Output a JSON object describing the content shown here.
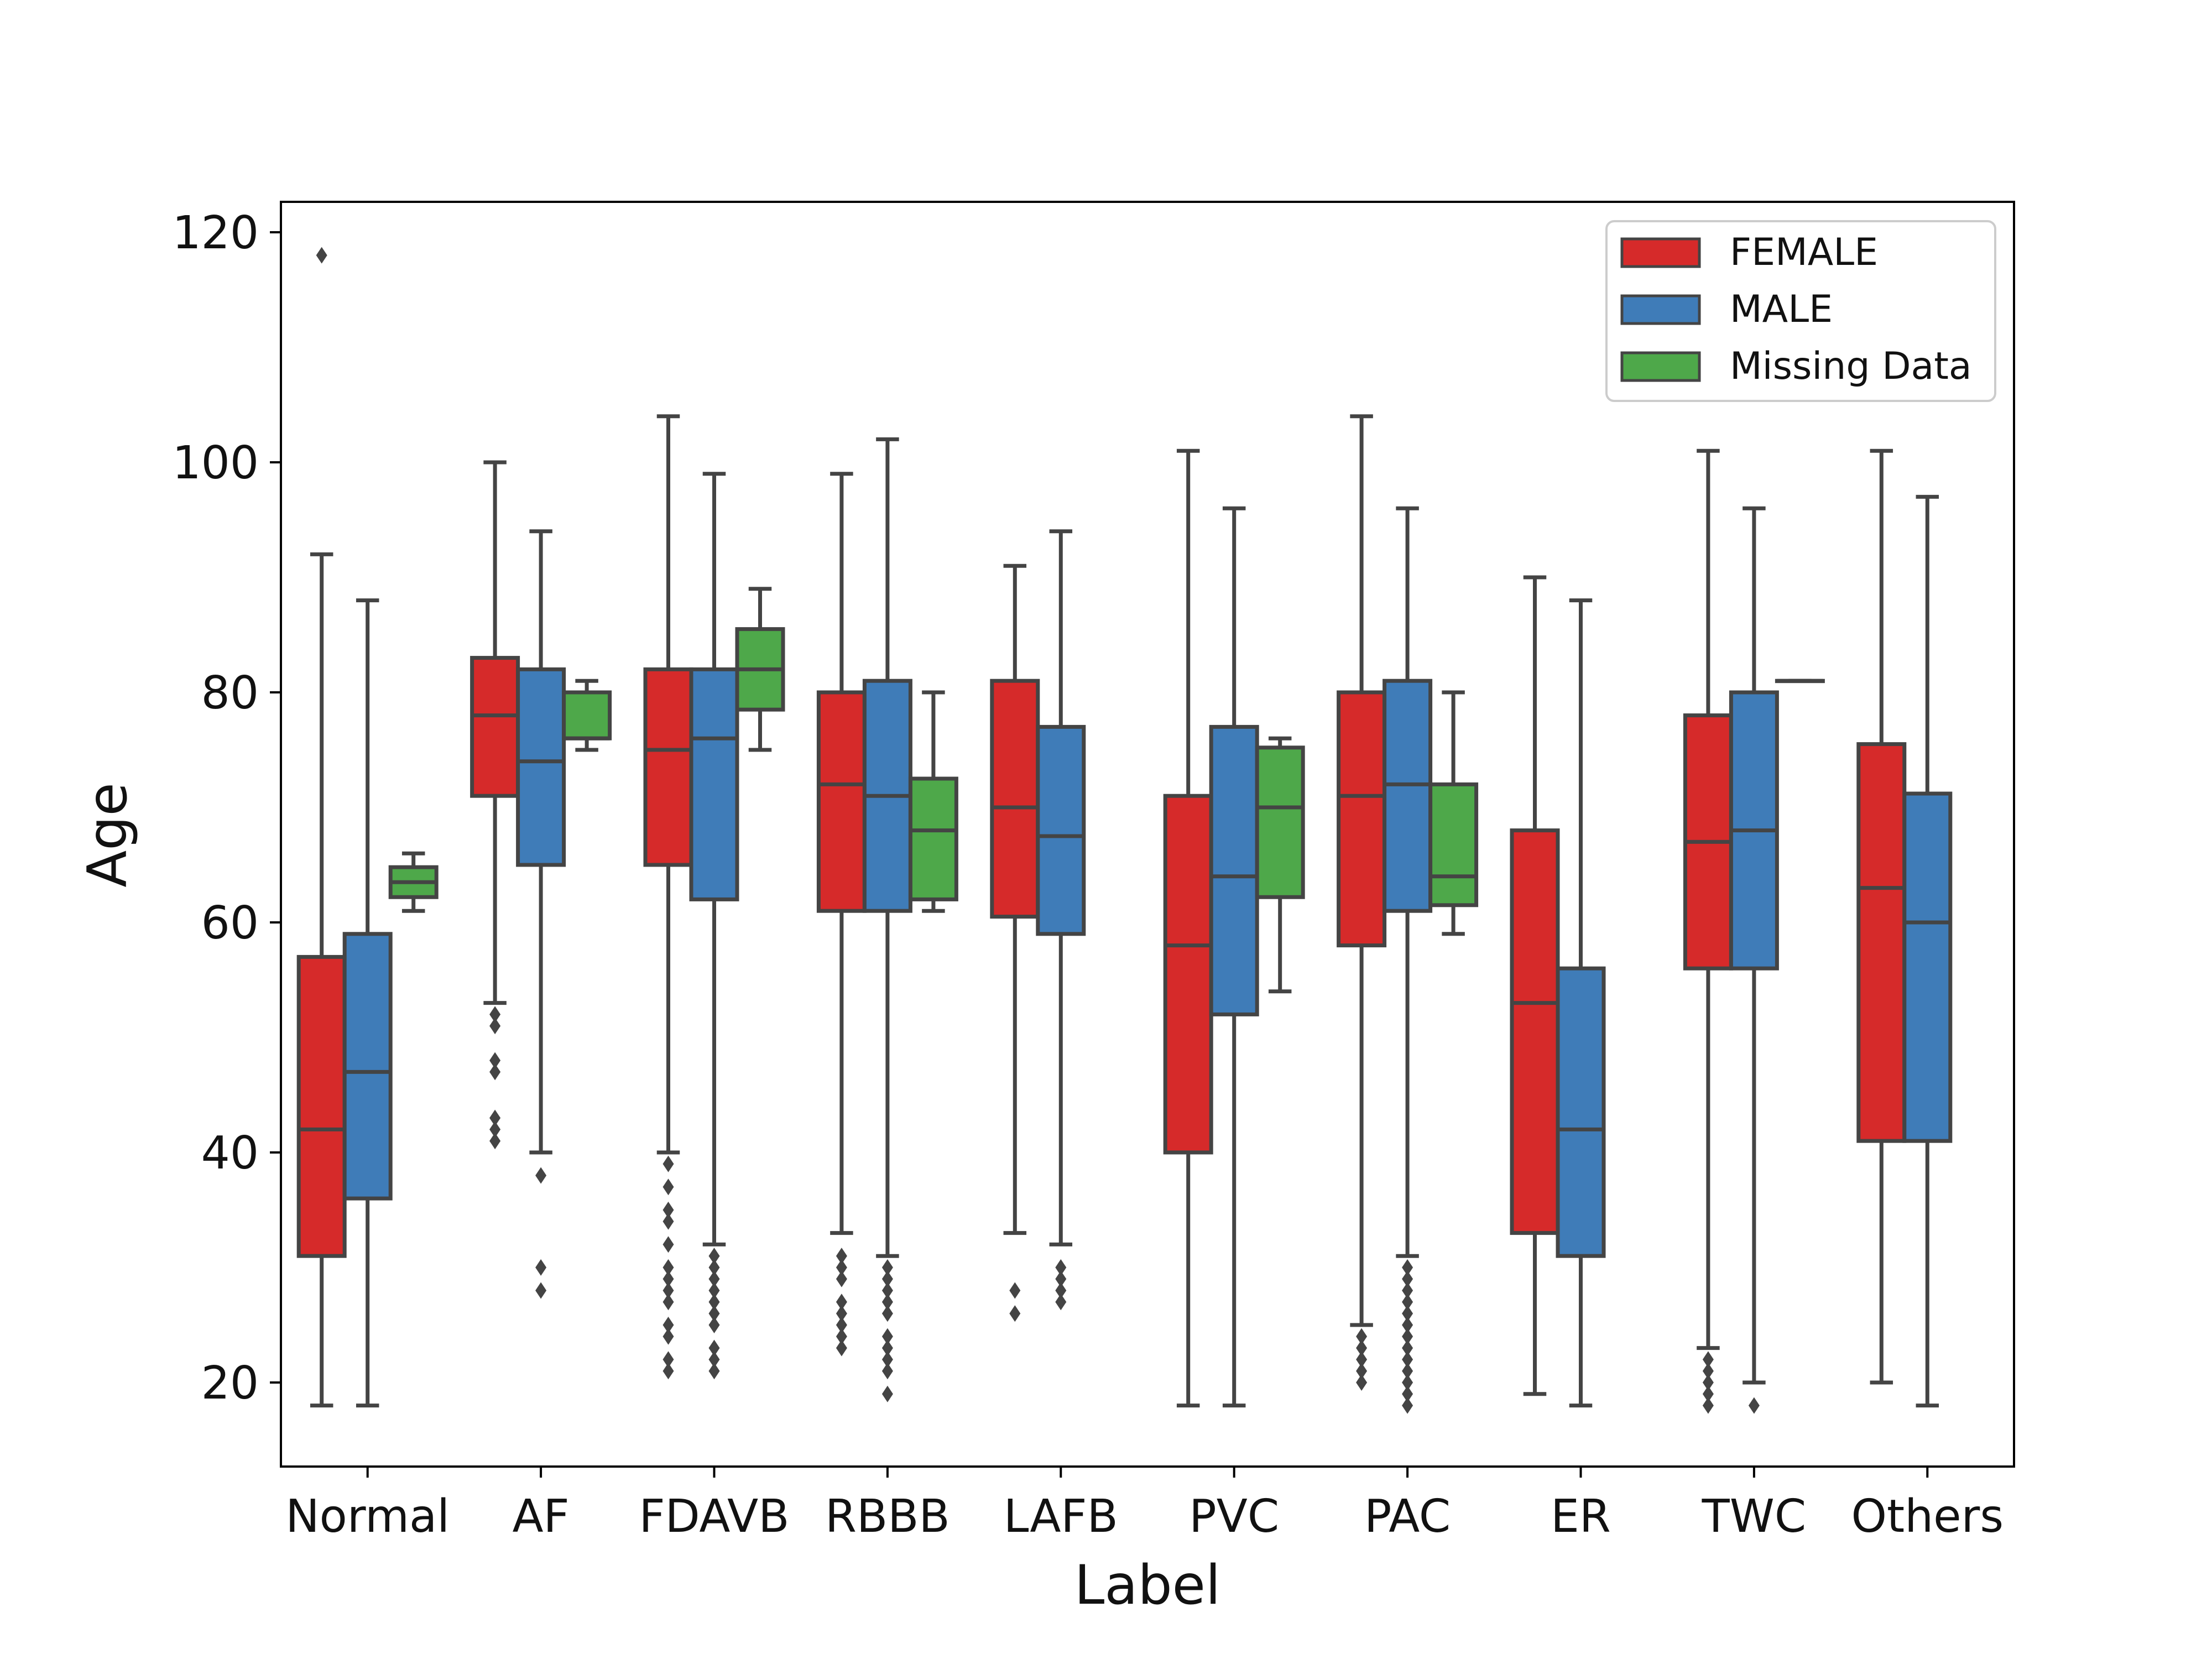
{
  "chart_data": {
    "type": "box",
    "xlabel": "Label",
    "ylabel": "Age",
    "ylim": [
      13,
      123
    ],
    "yticks": [
      20,
      40,
      60,
      80,
      100,
      120
    ],
    "categories": [
      "Normal",
      "AF",
      "FDAVB",
      "RBBB",
      "LAFB",
      "PVC",
      "PAC",
      "ER",
      "TWC",
      "Others"
    ],
    "legend": {
      "position": "top-right",
      "entries": [
        "FEMALE",
        "MALE",
        "Missing Data"
      ]
    },
    "series": [
      {
        "name": "FEMALE",
        "color": "#d62a2a",
        "boxes": [
          {
            "category": "Normal",
            "whisker_low": 18,
            "q1": 31,
            "median": 42,
            "q3": 57,
            "whisker_high": 92,
            "outliers": [
              118
            ]
          },
          {
            "category": "AF",
            "whisker_low": 53,
            "q1": 71,
            "median": 78,
            "q3": 83,
            "whisker_high": 100,
            "outliers": [
              52,
              51,
              48,
              47,
              43,
              42,
              41
            ]
          },
          {
            "category": "FDAVB",
            "whisker_low": 40,
            "q1": 65,
            "median": 75,
            "q3": 82,
            "whisker_high": 104,
            "outliers": [
              39,
              37,
              35,
              34,
              32,
              30,
              29,
              28,
              27,
              25,
              24,
              22,
              21
            ]
          },
          {
            "category": "RBBB",
            "whisker_low": 33,
            "q1": 61,
            "median": 72,
            "q3": 80,
            "whisker_high": 99,
            "outliers": [
              31,
              30,
              29,
              27,
              26,
              25,
              24,
              23
            ]
          },
          {
            "category": "LAFB",
            "whisker_low": 33,
            "q1": 60.5,
            "median": 70,
            "q3": 81,
            "whisker_high": 91,
            "outliers": [
              28,
              26
            ]
          },
          {
            "category": "PVC",
            "whisker_low": 18,
            "q1": 40,
            "median": 58,
            "q3": 71,
            "whisker_high": 101,
            "outliers": []
          },
          {
            "category": "PAC",
            "whisker_low": 25,
            "q1": 58,
            "median": 71,
            "q3": 80,
            "whisker_high": 104,
            "outliers": [
              24,
              23,
              22,
              21,
              20
            ]
          },
          {
            "category": "ER",
            "whisker_low": 19,
            "q1": 33,
            "median": 53,
            "q3": 68,
            "whisker_high": 90,
            "outliers": []
          },
          {
            "category": "TWC",
            "whisker_low": 23,
            "q1": 56,
            "median": 67,
            "q3": 78,
            "whisker_high": 101,
            "outliers": [
              22,
              21,
              20,
              19,
              18
            ]
          },
          {
            "category": "Others",
            "whisker_low": 20,
            "q1": 41,
            "median": 63,
            "q3": 75.5,
            "whisker_high": 101,
            "outliers": []
          }
        ]
      },
      {
        "name": "MALE",
        "color": "#3f7cb8",
        "boxes": [
          {
            "category": "Normal",
            "whisker_low": 18,
            "q1": 36,
            "median": 47,
            "q3": 59,
            "whisker_high": 88,
            "outliers": []
          },
          {
            "category": "AF",
            "whisker_low": 40,
            "q1": 65,
            "median": 74,
            "q3": 82,
            "whisker_high": 94,
            "outliers": [
              38,
              30,
              28
            ]
          },
          {
            "category": "FDAVB",
            "whisker_low": 32,
            "q1": 62,
            "median": 76,
            "q3": 82,
            "whisker_high": 99,
            "outliers": [
              31,
              30,
              29,
              28,
              27,
              26,
              25,
              23,
              22,
              21
            ]
          },
          {
            "category": "RBBB",
            "whisker_low": 31,
            "q1": 61,
            "median": 71,
            "q3": 81,
            "whisker_high": 102,
            "outliers": [
              30,
              29,
              28,
              27,
              26,
              24,
              23,
              22,
              21,
              19
            ]
          },
          {
            "category": "LAFB",
            "whisker_low": 32,
            "q1": 59,
            "median": 67.5,
            "q3": 77,
            "whisker_high": 94,
            "outliers": [
              30,
              29,
              28,
              27
            ]
          },
          {
            "category": "PVC",
            "whisker_low": 18,
            "q1": 52,
            "median": 64,
            "q3": 77,
            "whisker_high": 96,
            "outliers": []
          },
          {
            "category": "PAC",
            "whisker_low": 31,
            "q1": 61,
            "median": 72,
            "q3": 81,
            "whisker_high": 96,
            "outliers": [
              30,
              29,
              28,
              27,
              26,
              25,
              24,
              23,
              22,
              21,
              20,
              19,
              18
            ]
          },
          {
            "category": "ER",
            "whisker_low": 18,
            "q1": 31,
            "median": 42,
            "q3": 56,
            "whisker_high": 88,
            "outliers": []
          },
          {
            "category": "TWC",
            "whisker_low": 20,
            "q1": 56,
            "median": 68,
            "q3": 80,
            "whisker_high": 96,
            "outliers": [
              18
            ]
          },
          {
            "category": "Others",
            "whisker_low": 18,
            "q1": 41,
            "median": 60,
            "q3": 71.2,
            "whisker_high": 97,
            "outliers": []
          }
        ]
      },
      {
        "name": "Missing Data",
        "color": "#4ea84a",
        "boxes": [
          {
            "category": "Normal",
            "whisker_low": 61,
            "q1": 62.2,
            "median": 63.5,
            "q3": 64.8,
            "whisker_high": 66,
            "outliers": []
          },
          {
            "category": "AF",
            "whisker_low": 75,
            "q1": 76,
            "median": 76,
            "q3": 80,
            "whisker_high": 81,
            "outliers": []
          },
          {
            "category": "FDAVB",
            "whisker_low": 75,
            "q1": 78.5,
            "median": 82,
            "q3": 85.5,
            "whisker_high": 89,
            "outliers": []
          },
          {
            "category": "RBBB",
            "whisker_low": 61,
            "q1": 62,
            "median": 68,
            "q3": 72.5,
            "whisker_high": 80,
            "outliers": []
          },
          {
            "category": "PVC",
            "whisker_low": 54,
            "q1": 62.2,
            "median": 70,
            "q3": 75.2,
            "whisker_high": 76,
            "outliers": []
          },
          {
            "category": "PAC",
            "whisker_low": 59,
            "q1": 61.5,
            "median": 64,
            "q3": 72,
            "whisker_high": 80,
            "outliers": []
          },
          {
            "category": "TWC",
            "whisker_low": 81,
            "q1": 81,
            "median": 81,
            "q3": 81,
            "whisker_high": 81,
            "outliers": []
          }
        ]
      }
    ]
  }
}
